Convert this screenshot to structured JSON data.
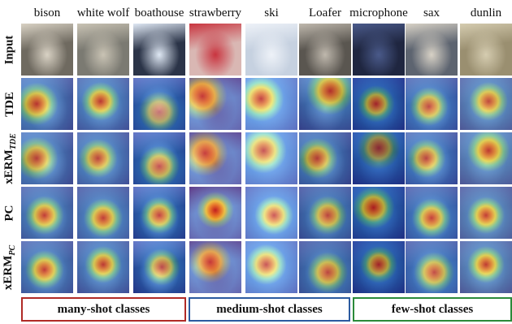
{
  "columns": [
    {
      "label": "bison",
      "bg": "#6f6a60",
      "accent": "#d9d2c4"
    },
    {
      "label": "white wolf",
      "bg": "#7b7a72",
      "accent": "#c9c3b4"
    },
    {
      "label": "boathouse",
      "bg": "#2b3448",
      "accent": "#dfe8f4"
    },
    {
      "label": "strawberry",
      "bg": "#d9b7b3",
      "accent": "#c9343f"
    },
    {
      "label": "ski",
      "bg": "#c6d1e0",
      "accent": "#eef2f8"
    },
    {
      "label": "Loafer",
      "bg": "#5a5650",
      "accent": "#bfb8ad"
    },
    {
      "label": "microphone",
      "bg": "#1f2640",
      "accent": "#4a5a8a"
    },
    {
      "label": "sax",
      "bg": "#5d6470",
      "accent": "#d8d2c6"
    },
    {
      "label": "dunlin",
      "bg": "#9a8f70",
      "accent": "#d5ccb0"
    }
  ],
  "rows": [
    {
      "label": "Input",
      "sub": ""
    },
    {
      "label": "TDE",
      "sub": ""
    },
    {
      "label": "xERM",
      "sub": "TDE"
    },
    {
      "label": "PC",
      "sub": ""
    },
    {
      "label": "xERM",
      "sub": "PC"
    }
  ],
  "groups": [
    {
      "label": "many-shot classes",
      "color": "#b02a26"
    },
    {
      "label": "medium-shot classes",
      "color": "#2b5aa0"
    },
    {
      "label": "few-shot classes",
      "color": "#2a8a3a"
    }
  ],
  "heatmaps": {
    "TDE": [
      [
        0.3,
        0.5,
        0.9
      ],
      [
        0.45,
        0.45,
        0.9
      ],
      [
        0.5,
        0.65,
        0.6
      ],
      [
        0.25,
        0.35,
        0.8
      ],
      [
        0.3,
        0.4,
        0.9
      ],
      [
        0.6,
        0.25,
        0.9
      ],
      [
        0.45,
        0.5,
        0.9
      ],
      [
        0.45,
        0.55,
        0.8
      ],
      [
        0.55,
        0.45,
        0.8
      ]
    ],
    "xERM_TDE": [
      [
        0.3,
        0.5,
        0.8
      ],
      [
        0.4,
        0.5,
        0.8
      ],
      [
        0.5,
        0.65,
        0.8
      ],
      [
        0.3,
        0.4,
        0.7
      ],
      [
        0.35,
        0.35,
        0.8
      ],
      [
        0.35,
        0.5,
        0.8
      ],
      [
        0.5,
        0.3,
        0.7
      ],
      [
        0.4,
        0.5,
        0.8
      ],
      [
        0.55,
        0.35,
        0.9
      ]
    ],
    "PC": [
      [
        0.45,
        0.55,
        0.9
      ],
      [
        0.5,
        0.6,
        0.9
      ],
      [
        0.5,
        0.55,
        0.9
      ],
      [
        0.5,
        0.45,
        1.0
      ],
      [
        0.55,
        0.55,
        0.8
      ],
      [
        0.55,
        0.55,
        0.8
      ],
      [
        0.4,
        0.4,
        1.0
      ],
      [
        0.5,
        0.6,
        0.9
      ],
      [
        0.5,
        0.55,
        0.9
      ]
    ],
    "xERM_PC": [
      [
        0.45,
        0.55,
        0.9
      ],
      [
        0.5,
        0.45,
        0.9
      ],
      [
        0.55,
        0.5,
        0.8
      ],
      [
        0.4,
        0.4,
        0.7
      ],
      [
        0.4,
        0.45,
        0.8
      ],
      [
        0.55,
        0.6,
        0.8
      ],
      [
        0.5,
        0.45,
        0.9
      ],
      [
        0.55,
        0.6,
        0.8
      ],
      [
        0.5,
        0.45,
        0.9
      ]
    ]
  }
}
